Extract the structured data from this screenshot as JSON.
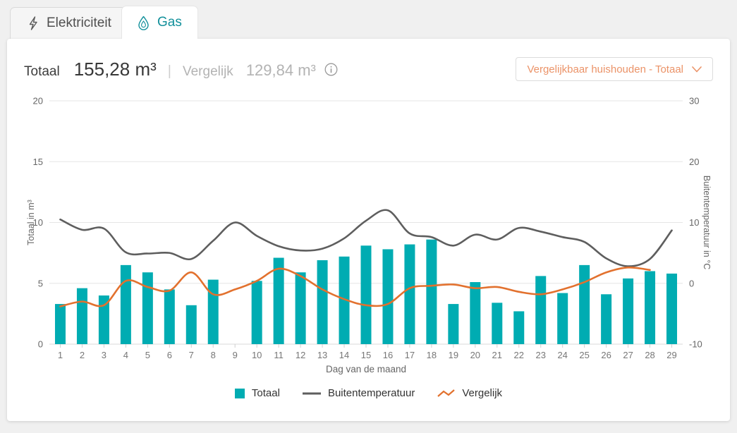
{
  "tabs": [
    {
      "label": "Elektriciteit",
      "icon": "lightning-icon",
      "active": false
    },
    {
      "label": "Gas",
      "icon": "gas-drop-icon",
      "active": true
    }
  ],
  "summary": {
    "totaal_label": "Totaal",
    "totaal_value": "155,28 m³",
    "separator": "|",
    "vergelijk_label": "Vergelijk",
    "vergelijk_value": "129,84 m³",
    "info_icon": "info-icon"
  },
  "dropdown": {
    "label": "Vergelijkbaar huishouden - Totaal",
    "icon": "chevron-down-icon"
  },
  "colors": {
    "bar_teal": "#00ACB2",
    "temperature_gray": "#5E5E5E",
    "vergelijk_orange": "#E2712E",
    "dropdown_orange": "#EB9368",
    "active_tab_teal": "#12909B",
    "gridline": "#E6E6E6",
    "baseline": "#D8D8D8"
  },
  "chart_data": {
    "type": "combo-bar-line",
    "x": [
      1,
      2,
      3,
      4,
      5,
      6,
      7,
      8,
      9,
      10,
      11,
      12,
      13,
      14,
      15,
      16,
      17,
      18,
      19,
      20,
      21,
      22,
      23,
      24,
      25,
      26,
      27,
      28,
      29
    ],
    "xlabel": "Dag van de maand",
    "left_axis": {
      "title": "Totaal in m³",
      "ticks": [
        0,
        5,
        10,
        15,
        20
      ],
      "range": [
        0,
        20
      ]
    },
    "right_axis": {
      "title": "Buitentemperatuur in °C",
      "ticks": [
        -10,
        0,
        10,
        20,
        30
      ],
      "range": [
        -10,
        30
      ]
    },
    "grid": true,
    "legend_position": "bottom",
    "series": [
      {
        "name": "Totaal",
        "type": "bar",
        "axis": "left",
        "color": "#00ACB2",
        "values": [
          3.3,
          4.6,
          4.0,
          6.5,
          5.9,
          4.5,
          3.2,
          5.3,
          null,
          5.2,
          7.1,
          5.9,
          6.9,
          7.2,
          8.1,
          7.8,
          8.2,
          8.6,
          3.3,
          5.1,
          3.4,
          2.7,
          5.6,
          4.2,
          6.5,
          4.1,
          5.4,
          6.0,
          5.8
        ]
      },
      {
        "name": "Buitentemperatuur",
        "type": "line",
        "axis": "right",
        "color": "#5E5E5E",
        "values": [
          10.5,
          8.8,
          9.0,
          5.1,
          4.9,
          5.0,
          4.0,
          7.0,
          10.0,
          7.8,
          6.1,
          5.4,
          5.7,
          7.4,
          10.3,
          12.0,
          8.2,
          7.6,
          6.2,
          8.0,
          7.2,
          9.1,
          8.5,
          7.6,
          6.8,
          4.1,
          2.8,
          4.0,
          8.7
        ]
      },
      {
        "name": "Vergelijk",
        "type": "line",
        "axis": "left",
        "color": "#E2712E",
        "values": [
          3.1,
          3.5,
          3.2,
          5.2,
          4.7,
          4.4,
          5.9,
          4.1,
          4.5,
          5.2,
          6.2,
          5.6,
          4.5,
          3.7,
          3.2,
          3.3,
          4.6,
          4.8,
          4.9,
          4.6,
          4.7,
          4.3,
          4.1,
          4.5,
          5.1,
          5.9,
          6.3,
          6.1,
          null
        ]
      }
    ]
  }
}
